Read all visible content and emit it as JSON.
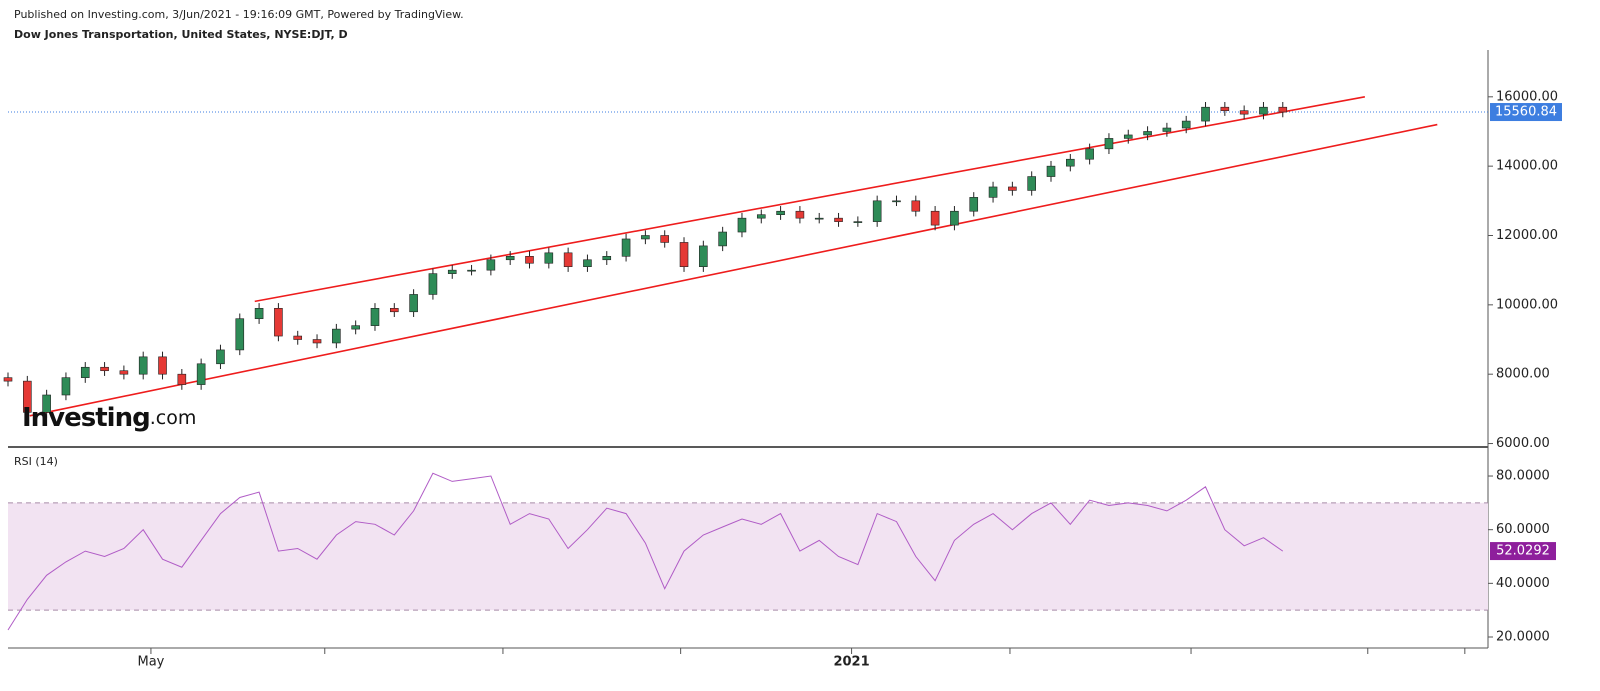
{
  "header": {
    "published": "Published on Investing.com, 3/Jun/2021 - 19:16:09 GMT, Powered by TradingView.",
    "instrument": "Dow Jones Transportation, United States, NYSE:DJT, D"
  },
  "watermark": {
    "brand": "Investing",
    "suffix": ".com"
  },
  "chart_data": [
    {
      "type": "candlestick",
      "up_color": "#2e8b57",
      "down_color": "#e53935",
      "x": [
        0,
        4,
        8,
        12,
        16,
        20,
        24,
        28,
        32,
        36,
        40,
        44,
        48,
        52,
        56,
        60,
        64,
        68,
        72,
        76,
        80,
        84,
        88,
        92,
        96,
        100,
        104,
        108,
        112,
        116,
        120,
        124,
        128,
        132,
        136,
        140,
        144,
        148,
        152,
        156,
        160,
        164,
        168,
        172,
        176,
        180,
        184,
        188,
        192,
        196,
        200,
        204,
        208,
        212,
        216,
        220,
        224,
        228,
        232,
        236,
        240,
        244,
        248,
        252,
        256,
        260,
        264
      ],
      "open": [
        7900,
        7800,
        6900,
        7400,
        7900,
        8200,
        8100,
        8000,
        8500,
        8000,
        7700,
        8300,
        8700,
        9600,
        9900,
        9100,
        9000,
        8900,
        9300,
        9400,
        9900,
        9800,
        10300,
        10900,
        11000,
        11000,
        11300,
        11400,
        11200,
        11500,
        11100,
        11300,
        11400,
        11900,
        12000,
        11800,
        11100,
        11700,
        12100,
        12500,
        12600,
        12700,
        12500,
        12500,
        12400,
        12400,
        13000,
        13000,
        12700,
        12300,
        12700,
        13100,
        13400,
        13300,
        13700,
        14000,
        14200,
        14500,
        14800,
        14900,
        15000,
        15100,
        15300,
        15700,
        15600,
        15500,
        15700
      ],
      "high": [
        8050,
        7950,
        7550,
        8050,
        8350,
        8350,
        8250,
        8650,
        8650,
        8150,
        8450,
        8850,
        9750,
        10050,
        10050,
        9250,
        9150,
        9450,
        9550,
        10050,
        10050,
        10450,
        11050,
        11150,
        11150,
        11450,
        11550,
        11550,
        11650,
        11650,
        11450,
        11550,
        12050,
        12150,
        12150,
        11950,
        11850,
        12250,
        12650,
        12750,
        12850,
        12850,
        12650,
        12650,
        12550,
        13150,
        13150,
        13150,
        12850,
        12850,
        13250,
        13550,
        13550,
        13850,
        14150,
        14350,
        14650,
        14950,
        15050,
        15150,
        15250,
        15450,
        15850,
        15850,
        15750,
        15850,
        15850
      ],
      "low": [
        7650,
        6750,
        6750,
        7250,
        7750,
        7950,
        7850,
        7850,
        7850,
        7550,
        7550,
        8150,
        8550,
        9450,
        8950,
        8850,
        8750,
        8750,
        9150,
        9250,
        9650,
        9650,
        10150,
        10750,
        10850,
        10850,
        11150,
        11050,
        11050,
        10950,
        10950,
        11150,
        11250,
        11750,
        11650,
        10950,
        10950,
        11550,
        11950,
        12350,
        12450,
        12350,
        12350,
        12250,
        12250,
        12250,
        12850,
        12550,
        12150,
        12150,
        12550,
        12950,
        13150,
        13150,
        13550,
        13850,
        14050,
        14350,
        14650,
        14750,
        14850,
        14950,
        15150,
        15450,
        15350,
        15350,
        15410
      ],
      "close": [
        7800,
        6900,
        7400,
        7900,
        8200,
        8100,
        8000,
        8500,
        8000,
        7700,
        8300,
        8700,
        9600,
        9900,
        9100,
        9000,
        8900,
        9300,
        9400,
        9900,
        9800,
        10300,
        10900,
        11000,
        11000,
        11300,
        11400,
        11200,
        11500,
        11100,
        11300,
        11400,
        11900,
        12000,
        11800,
        11100,
        11700,
        12100,
        12500,
        12600,
        12700,
        12500,
        12500,
        12400,
        12400,
        13000,
        13000,
        12700,
        12300,
        12700,
        13100,
        13400,
        13300,
        13700,
        14000,
        14200,
        14500,
        14800,
        14900,
        15000,
        15100,
        15300,
        15700,
        15600,
        15500,
        15700,
        15560.84
      ],
      "last_price": 15560.84,
      "last_price_color": "#3d7ee0",
      "trend_lines": [
        {
          "color": "#ee1c1c",
          "x": [
            51.1,
            281
          ],
          "y": [
            10100,
            16000
          ]
        },
        {
          "color": "#ee1c1c",
          "x": [
            4.5,
            296
          ],
          "y": [
            6800,
            15200
          ]
        }
      ],
      "xlim": [
        0,
        306.5
      ],
      "ylim": [
        5900,
        17350
      ],
      "yticks": [
        {
          "value": 6000,
          "label": "6000.00"
        },
        {
          "value": 8000,
          "label": "8000.00"
        },
        {
          "value": 10000,
          "label": "10000.00"
        },
        {
          "value": 12000,
          "label": "12000.00"
        },
        {
          "value": 14000,
          "label": "14000.00"
        },
        {
          "value": 16000,
          "label": "16000.00"
        }
      ]
    },
    {
      "type": "line",
      "title": "RSI (14)",
      "color": "#b05cc6",
      "band_color": "#f2e3f2",
      "bands": [
        30,
        70
      ],
      "x": [
        0,
        4,
        8,
        12,
        16,
        20,
        24,
        28,
        32,
        36,
        40,
        44,
        48,
        52,
        56,
        60,
        64,
        68,
        72,
        76,
        80,
        84,
        88,
        92,
        96,
        100,
        104,
        108,
        112,
        116,
        120,
        124,
        128,
        132,
        136,
        140,
        144,
        148,
        152,
        156,
        160,
        164,
        168,
        172,
        176,
        180,
        184,
        188,
        192,
        196,
        200,
        204,
        208,
        212,
        216,
        220,
        224,
        228,
        232,
        236,
        240,
        244,
        248,
        252,
        256,
        260,
        264
      ],
      "values": [
        22.6,
        34,
        43,
        48,
        52,
        50,
        53,
        60,
        49,
        46,
        56,
        66,
        72,
        74,
        52,
        53,
        49,
        58,
        63,
        62,
        58,
        67,
        81,
        78,
        79,
        80,
        62,
        66,
        64,
        53,
        60,
        68,
        66,
        55,
        38,
        52,
        58,
        61,
        64,
        62,
        66,
        52,
        56,
        50,
        47,
        66,
        63,
        50,
        41,
        56,
        62,
        66,
        60,
        66,
        70,
        62,
        71,
        69,
        70,
        69,
        67,
        71,
        76,
        60,
        54,
        57,
        52.0292
      ],
      "last_value": 52.0292,
      "last_value_color": "#8e1f9c",
      "xlim": [
        0,
        306.5
      ],
      "ylim": [
        15.9,
        89.7
      ],
      "yticks": [
        {
          "value": 20,
          "label": "20.0000"
        },
        {
          "value": 40,
          "label": "40.0000"
        },
        {
          "value": 60,
          "label": "60.0000"
        },
        {
          "value": 80,
          "label": "80.0000"
        }
      ],
      "xticks": [
        {
          "value": 29.6,
          "label": "May"
        },
        {
          "value": 65.6,
          "label": null
        },
        {
          "value": 102.5,
          "label": null
        },
        {
          "value": 139.3,
          "label": null
        },
        {
          "value": 174.7,
          "label": "2021"
        },
        {
          "value": 207.5,
          "label": null
        },
        {
          "value": 245,
          "label": null
        },
        {
          "value": 281.6,
          "label": null
        },
        {
          "value": 301.7,
          "label": null
        }
      ]
    }
  ]
}
